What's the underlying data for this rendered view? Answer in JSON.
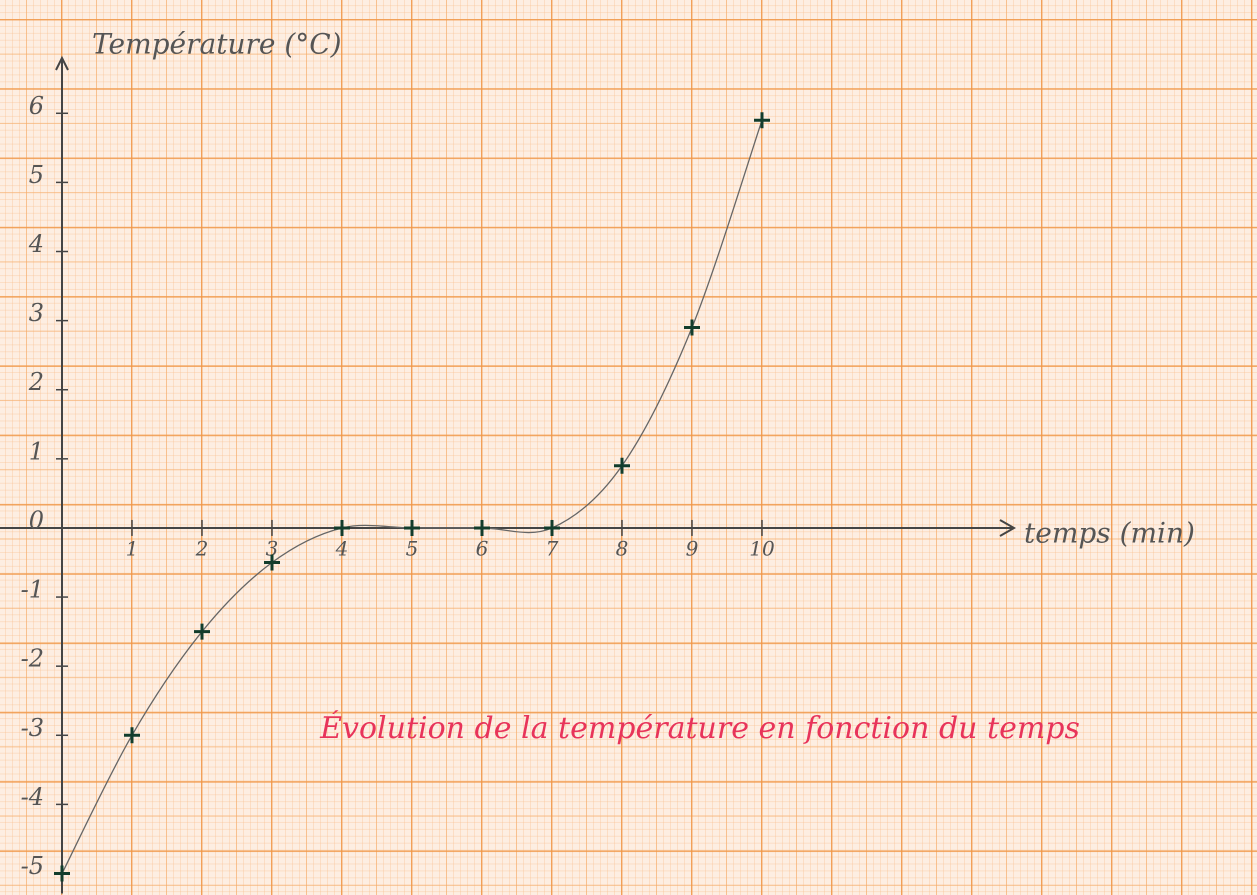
{
  "chart_data": {
    "type": "line",
    "title": "Évolution de la température en fonction du temps",
    "x_label": "temps (min)",
    "y_label": "Température (°C)",
    "x": [
      0,
      1,
      2,
      3,
      4,
      5,
      6,
      7,
      8,
      9,
      10
    ],
    "values": [
      -5,
      -3,
      -1.5,
      -0.5,
      0,
      0,
      0,
      0,
      0.9,
      2.9,
      5.9
    ],
    "color": "#666666",
    "marker_color": "#123d2c",
    "title_color": "#e8345a",
    "xlim": [
      0,
      13.6
    ],
    "ylim": [
      -5,
      6.8
    ],
    "xticks": [
      1,
      2,
      3,
      4,
      5,
      6,
      7,
      8,
      9,
      10
    ],
    "yticks": [
      -5,
      -4,
      -3,
      -2,
      -1,
      0,
      1,
      2,
      3,
      4,
      5,
      6
    ]
  }
}
